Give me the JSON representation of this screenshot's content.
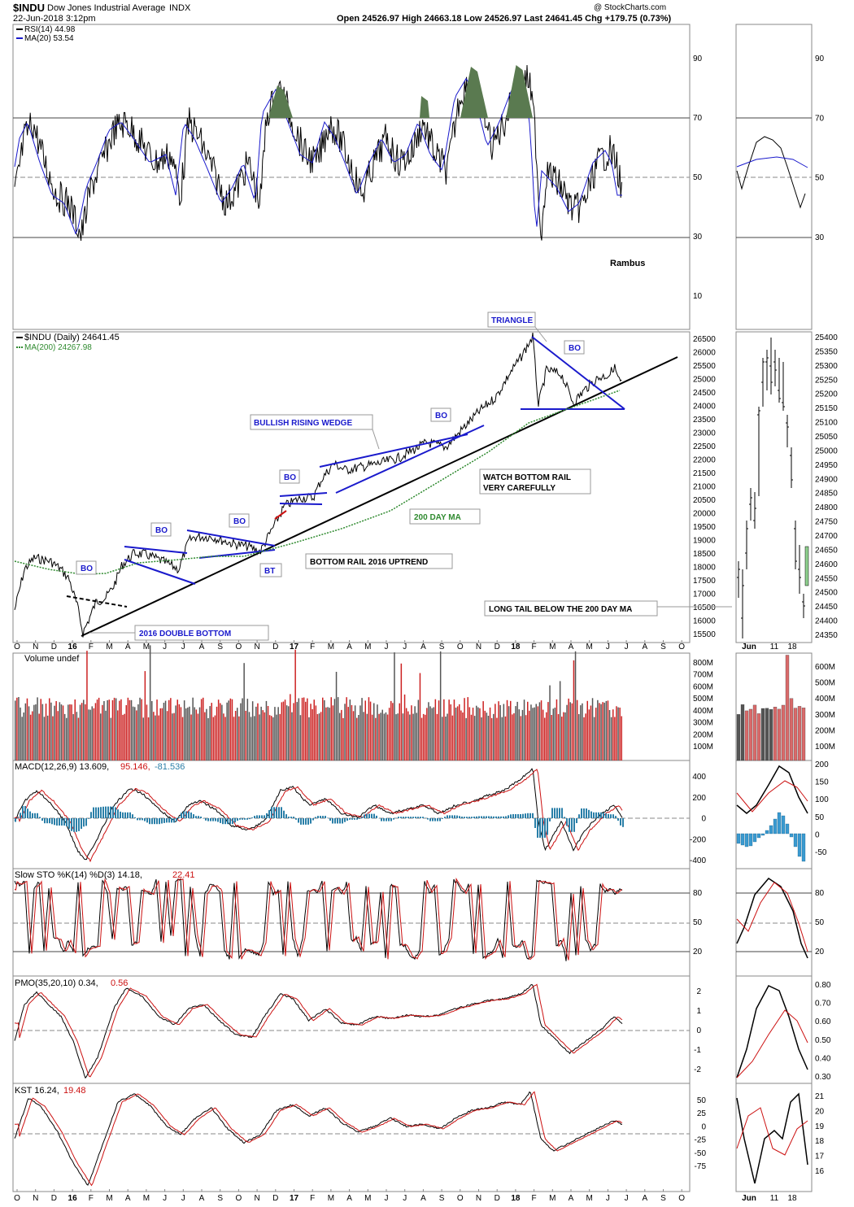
{
  "header": {
    "symbol": "$INDU",
    "name": "Dow Jones Industrial Average",
    "exchange": "INDX",
    "date": "22-Jun-2018 3:12pm",
    "quote": "Open 24526.97  High 24663.18  Low 24526.97  Last 24641.45  Chg +179.75 (0.73%)",
    "watermark": "@ StockCharts.com"
  },
  "rsi": {
    "label": "RSI(14) 44.98",
    "ma_label": "MA(20) 53.54",
    "ticks": [
      "90",
      "70",
      "50",
      "30",
      "10"
    ],
    "ticks_right": [
      "90",
      "70",
      "50",
      "30"
    ],
    "rambus": "Rambus"
  },
  "price": {
    "label": "$INDU (Daily) 24641.45",
    "ma_label": "MA(200) 24267.98",
    "ticks": [
      "26500",
      "26000",
      "25500",
      "25000",
      "24500",
      "24000",
      "23500",
      "23000",
      "22500",
      "22000",
      "21500",
      "21000",
      "20500",
      "20000",
      "19500",
      "19000",
      "18500",
      "18000",
      "17500",
      "17000",
      "16500",
      "16000",
      "15500"
    ],
    "ticks_right": [
      "25400",
      "25350",
      "25300",
      "25250",
      "25200",
      "25150",
      "25100",
      "25050",
      "25000",
      "24950",
      "24900",
      "24850",
      "24800",
      "24750",
      "24700",
      "24650",
      "24600",
      "24550",
      "24500",
      "24450",
      "24400",
      "24350"
    ]
  },
  "annotations": {
    "triangle": "TRIANGLE",
    "bullish_wedge": "BULLISH RISING WEDGE",
    "watch_1": "WATCH BOTTOM RAIL",
    "watch_2": "VERY CAREFULLY",
    "ma200": "200 DAY MA",
    "bottom_rail": "BOTTOM RAIL 2016 UPTREND",
    "long_tail": "LONG TAIL BELOW THE 200 DAY MA",
    "double_bottom": "2016 DOUBLE BOTTOM",
    "bo": "BO",
    "bt": "BT"
  },
  "xaxis": {
    "labels": [
      "O",
      "N",
      "D",
      "16",
      "F",
      "M",
      "A",
      "M",
      "J",
      "J",
      "A",
      "S",
      "O",
      "N",
      "D",
      "17",
      "F",
      "M",
      "A",
      "M",
      "J",
      "J",
      "A",
      "S",
      "O",
      "N",
      "D",
      "18",
      "F",
      "M",
      "A",
      "M",
      "J",
      "J",
      "A",
      "S",
      "O"
    ],
    "right_labels": [
      "Jun",
      "11",
      "18"
    ]
  },
  "volume": {
    "label": "Volume undef",
    "ticks": [
      "800M",
      "700M",
      "600M",
      "500M",
      "400M",
      "300M",
      "200M",
      "100M"
    ],
    "ticks_right": [
      "600M",
      "500M",
      "400M",
      "300M",
      "200M",
      "100M"
    ]
  },
  "macd": {
    "label": "MACD(12,26,9) 13.609,",
    "signal": "95.146,",
    "hist": "-81.536",
    "ticks": [
      "400",
      "200",
      "0",
      "-200",
      "-400"
    ],
    "ticks_right": [
      "200",
      "150",
      "100",
      "50",
      "0",
      "-50"
    ]
  },
  "sto": {
    "label": "Slow STO %K(14) %D(3) 14.18,",
    "d": "22.41",
    "ticks": [
      "80",
      "50",
      "20"
    ],
    "ticks_right": [
      "80",
      "50",
      "20"
    ]
  },
  "pmo": {
    "label": "PMO(35,20,10) 0.34,",
    "signal": "0.56",
    "ticks": [
      "2",
      "1",
      "0",
      "-1",
      "-2"
    ],
    "ticks_right": [
      "0.80",
      "0.70",
      "0.60",
      "0.50",
      "0.40",
      "0.30"
    ]
  },
  "kst": {
    "label": "KST 16.24,",
    "signal": "19.48",
    "ticks": [
      "50",
      "25",
      "0",
      "-25",
      "-50",
      "-75"
    ],
    "ticks_right": [
      "21",
      "20",
      "19",
      "18",
      "17",
      "16"
    ]
  },
  "colors": {
    "blue": "#1a1acc",
    "red": "#cc1111",
    "green": "#2f8a2f",
    "rsi_fill": "#5a7a50",
    "hist": "#2a7fa8",
    "vol_up": "#cc2222",
    "vol_down": "#555555"
  },
  "chart_data": [
    {
      "type": "line",
      "title": "$INDU (Daily) 24641.45",
      "series": [
        {
          "name": "$INDU (Daily)",
          "x": [
            "2016-01",
            "2016-02",
            "2016-05",
            "2016-08",
            "2016-11",
            "2017-01",
            "2017-03",
            "2017-06",
            "2017-09",
            "2017-11",
            "2018-01",
            "2018-02",
            "2018-03",
            "2018-05",
            "2018-06"
          ],
          "values": [
            17000,
            15700,
            17800,
            18500,
            18200,
            19900,
            21000,
            21300,
            22300,
            23500,
            25500,
            24000,
            24800,
            24500,
            24640
          ]
        },
        {
          "name": "MA(200)",
          "x": [
            "2016-01",
            "2016-07",
            "2017-01",
            "2017-07",
            "2018-01",
            "2018-06"
          ],
          "values": [
            17500,
            17300,
            18400,
            20800,
            23400,
            24268
          ]
        }
      ],
      "ylim": [
        15300,
        26700
      ]
    },
    {
      "type": "line",
      "title": "RSI(14) 44.98",
      "ylim": [
        0,
        100
      ]
    },
    {
      "type": "bar",
      "title": "Volume undef"
    },
    {
      "type": "line",
      "title": "MACD(12,26,9)"
    },
    {
      "type": "line",
      "title": "Slow STO %K(14) %D(3)"
    },
    {
      "type": "line",
      "title": "PMO(35,20,10)"
    },
    {
      "type": "line",
      "title": "KST"
    }
  ]
}
